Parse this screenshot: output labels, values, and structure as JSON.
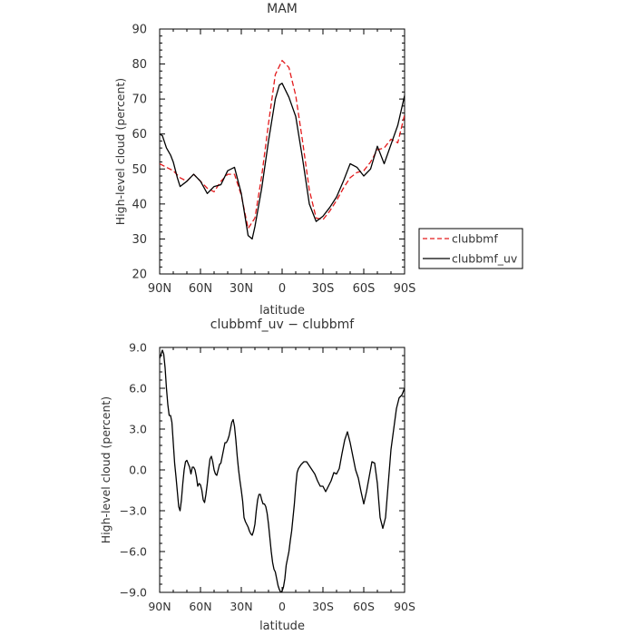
{
  "chart_data": [
    {
      "type": "line",
      "title": "MAM",
      "xlabel": "latitude",
      "ylabel": "High-level cloud (percent)",
      "x_tick_labels": [
        "90N",
        "60N",
        "30N",
        "0",
        "30S",
        "60S",
        "90S"
      ],
      "xlim": [
        90,
        -90
      ],
      "ylim": [
        20,
        90
      ],
      "y_ticks": [
        20,
        30,
        40,
        50,
        60,
        70,
        80,
        90
      ],
      "legend_position": "right",
      "series": [
        {
          "name": "clubbmf",
          "color": "#e31a1c",
          "dash": "dashed",
          "x": [
            90,
            85,
            80,
            75,
            70,
            65,
            60,
            55,
            50,
            45,
            40,
            35,
            30,
            25,
            20,
            15,
            10,
            5,
            0,
            -5,
            -10,
            -15,
            -20,
            -25,
            -30,
            -35,
            -40,
            -45,
            -50,
            -55,
            -60,
            -65,
            -70,
            -75,
            -80,
            -85,
            -90
          ],
          "y": [
            51.5,
            50.5,
            49.5,
            47.5,
            46.5,
            48.5,
            46.5,
            44.5,
            43.5,
            46.5,
            48.5,
            48.5,
            42.5,
            33.0,
            36.0,
            48.0,
            63.0,
            77.0,
            81.0,
            79.0,
            71.0,
            58.0,
            44.0,
            36.0,
            35.5,
            38.0,
            41.0,
            44.5,
            47.5,
            49.0,
            49.5,
            52.0,
            55.5,
            56.0,
            58.5,
            57.5,
            65.5
          ]
        },
        {
          "name": "clubbmf_uv",
          "color": "#000000",
          "dash": "solid",
          "x": [
            90,
            88,
            85,
            82,
            80,
            77,
            75,
            70,
            65,
            60,
            55,
            50,
            45,
            40,
            35,
            30,
            25,
            22,
            20,
            15,
            10,
            5,
            2,
            0,
            -5,
            -10,
            -15,
            -20,
            -25,
            -30,
            -35,
            -40,
            -45,
            -50,
            -55,
            -60,
            -65,
            -70,
            -75,
            -80,
            -85,
            -90
          ],
          "y": [
            60.0,
            59.5,
            56.0,
            54.0,
            52.0,
            47.5,
            45.0,
            46.5,
            48.5,
            46.5,
            43.0,
            45.0,
            45.5,
            49.5,
            50.5,
            43.0,
            31.0,
            30.0,
            33.5,
            44.5,
            58.0,
            70.0,
            74.0,
            74.5,
            70.5,
            65.0,
            53.0,
            40.0,
            35.0,
            36.5,
            39.0,
            42.0,
            46.5,
            51.5,
            50.5,
            48.0,
            50.0,
            56.5,
            51.5,
            57.0,
            62.5,
            71.0
          ]
        }
      ]
    },
    {
      "type": "line",
      "title": "clubbmf_uv − clubbmf",
      "xlabel": "latitude",
      "ylabel": "High-level cloud (percent)",
      "x_tick_labels": [
        "90N",
        "60N",
        "30N",
        "0",
        "30S",
        "60S",
        "90S"
      ],
      "xlim": [
        90,
        -90
      ],
      "ylim": [
        -9,
        9
      ],
      "y_ticks": [
        -9,
        -6,
        -3,
        0,
        3,
        6,
        9
      ],
      "y_tick_labels": [
        "−9.0",
        "−6.0",
        "−3.0",
        "0.0",
        "3.0",
        "6.0",
        "9.0"
      ],
      "series": [
        {
          "color": "#000000",
          "dash": "solid",
          "x": [
            90,
            89,
            88,
            87,
            86,
            85,
            84,
            83,
            82,
            81,
            80,
            79,
            78,
            77,
            76,
            75,
            74,
            73,
            72,
            71,
            70,
            68,
            67,
            66,
            65,
            64,
            63,
            62,
            61,
            60,
            59,
            58,
            57,
            56,
            55,
            54,
            53,
            52,
            51,
            50,
            49,
            48,
            47,
            46,
            45,
            44,
            43,
            42,
            41,
            40,
            39,
            38,
            37,
            36,
            35,
            34,
            33,
            32,
            31,
            30,
            29,
            28,
            27,
            26,
            25,
            24,
            23,
            22,
            21,
            20,
            19,
            18,
            17,
            16,
            15,
            14,
            13,
            12,
            11,
            10,
            9,
            8,
            7,
            6,
            5,
            4,
            3,
            2,
            1,
            0,
            -1,
            -2,
            -3,
            -4,
            -5,
            -6,
            -7,
            -8,
            -9,
            -10,
            -11,
            -12,
            -14,
            -16,
            -18,
            -20,
            -22,
            -24,
            -26,
            -28,
            -30,
            -32,
            -34,
            -36,
            -38,
            -40,
            -42,
            -44,
            -46,
            -48,
            -50,
            -52,
            -54,
            -56,
            -58,
            -60,
            -62,
            -64,
            -66,
            -68,
            -70,
            -72,
            -74,
            -76,
            -78,
            -80,
            -82,
            -84,
            -86,
            -88,
            -90
          ],
          "y": [
            8.2,
            8.5,
            8.8,
            8.5,
            7.5,
            6.0,
            4.8,
            4.0,
            4.0,
            3.5,
            2.0,
            0.5,
            -0.5,
            -1.6,
            -2.7,
            -3.0,
            -2.2,
            -1.0,
            0.0,
            0.6,
            0.7,
            0.2,
            -0.3,
            0.2,
            0.2,
            0.0,
            -0.5,
            -1.2,
            -1.0,
            -1.1,
            -1.5,
            -2.2,
            -2.4,
            -1.8,
            -1.0,
            0.0,
            0.8,
            1.0,
            0.6,
            0.0,
            -0.3,
            -0.4,
            0.0,
            0.4,
            0.5,
            1.0,
            1.5,
            2.0,
            2.0,
            2.2,
            2.5,
            3.0,
            3.5,
            3.7,
            3.2,
            2.2,
            1.0,
            0.0,
            -0.8,
            -1.5,
            -2.3,
            -3.5,
            -3.8,
            -4.0,
            -4.2,
            -4.5,
            -4.7,
            -4.8,
            -4.5,
            -4.0,
            -3.0,
            -2.2,
            -1.8,
            -1.8,
            -2.2,
            -2.5,
            -2.5,
            -2.7,
            -3.2,
            -4.0,
            -5.0,
            -6.0,
            -6.8,
            -7.3,
            -7.5,
            -8.0,
            -8.5,
            -8.8,
            -9.0,
            -8.9,
            -8.6,
            -8.0,
            -7.0,
            -6.5,
            -6.0,
            -5.2,
            -4.5,
            -3.5,
            -2.5,
            -1.2,
            -0.2,
            0.1,
            0.4,
            0.6,
            0.6,
            0.3,
            0.0,
            -0.3,
            -0.8,
            -1.2,
            -1.2,
            -1.6,
            -1.2,
            -0.8,
            -0.2,
            -0.3,
            0.1,
            1.2,
            2.2,
            2.8,
            2.0,
            1.0,
            0.0,
            -0.6,
            -1.6,
            -2.5,
            -1.6,
            -0.5,
            0.6,
            0.5,
            -1.0,
            -3.5,
            -4.3,
            -3.5,
            -1.0,
            1.5,
            3.0,
            4.5,
            5.3,
            5.5,
            6.0
          ]
        }
      ]
    }
  ]
}
